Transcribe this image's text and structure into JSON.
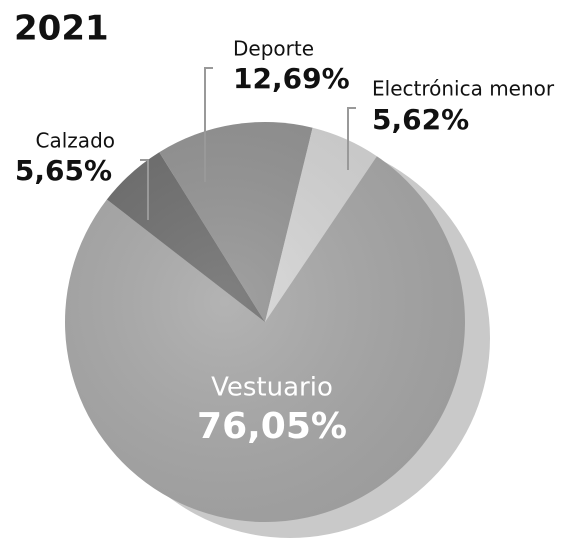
{
  "chart_data": {
    "type": "pie",
    "title": "2021",
    "categories": [
      "Vestuario",
      "Calzado",
      "Deporte",
      "Electrónica menor"
    ],
    "values": [
      76.05,
      5.65,
      12.69,
      5.62
    ],
    "value_labels": [
      "76,05%",
      "5,65%",
      "12,69%",
      "5,62%"
    ],
    "colors": [
      "#a9a9a9",
      "#6f6f6f",
      "#949494",
      "#d6d6d6"
    ]
  }
}
